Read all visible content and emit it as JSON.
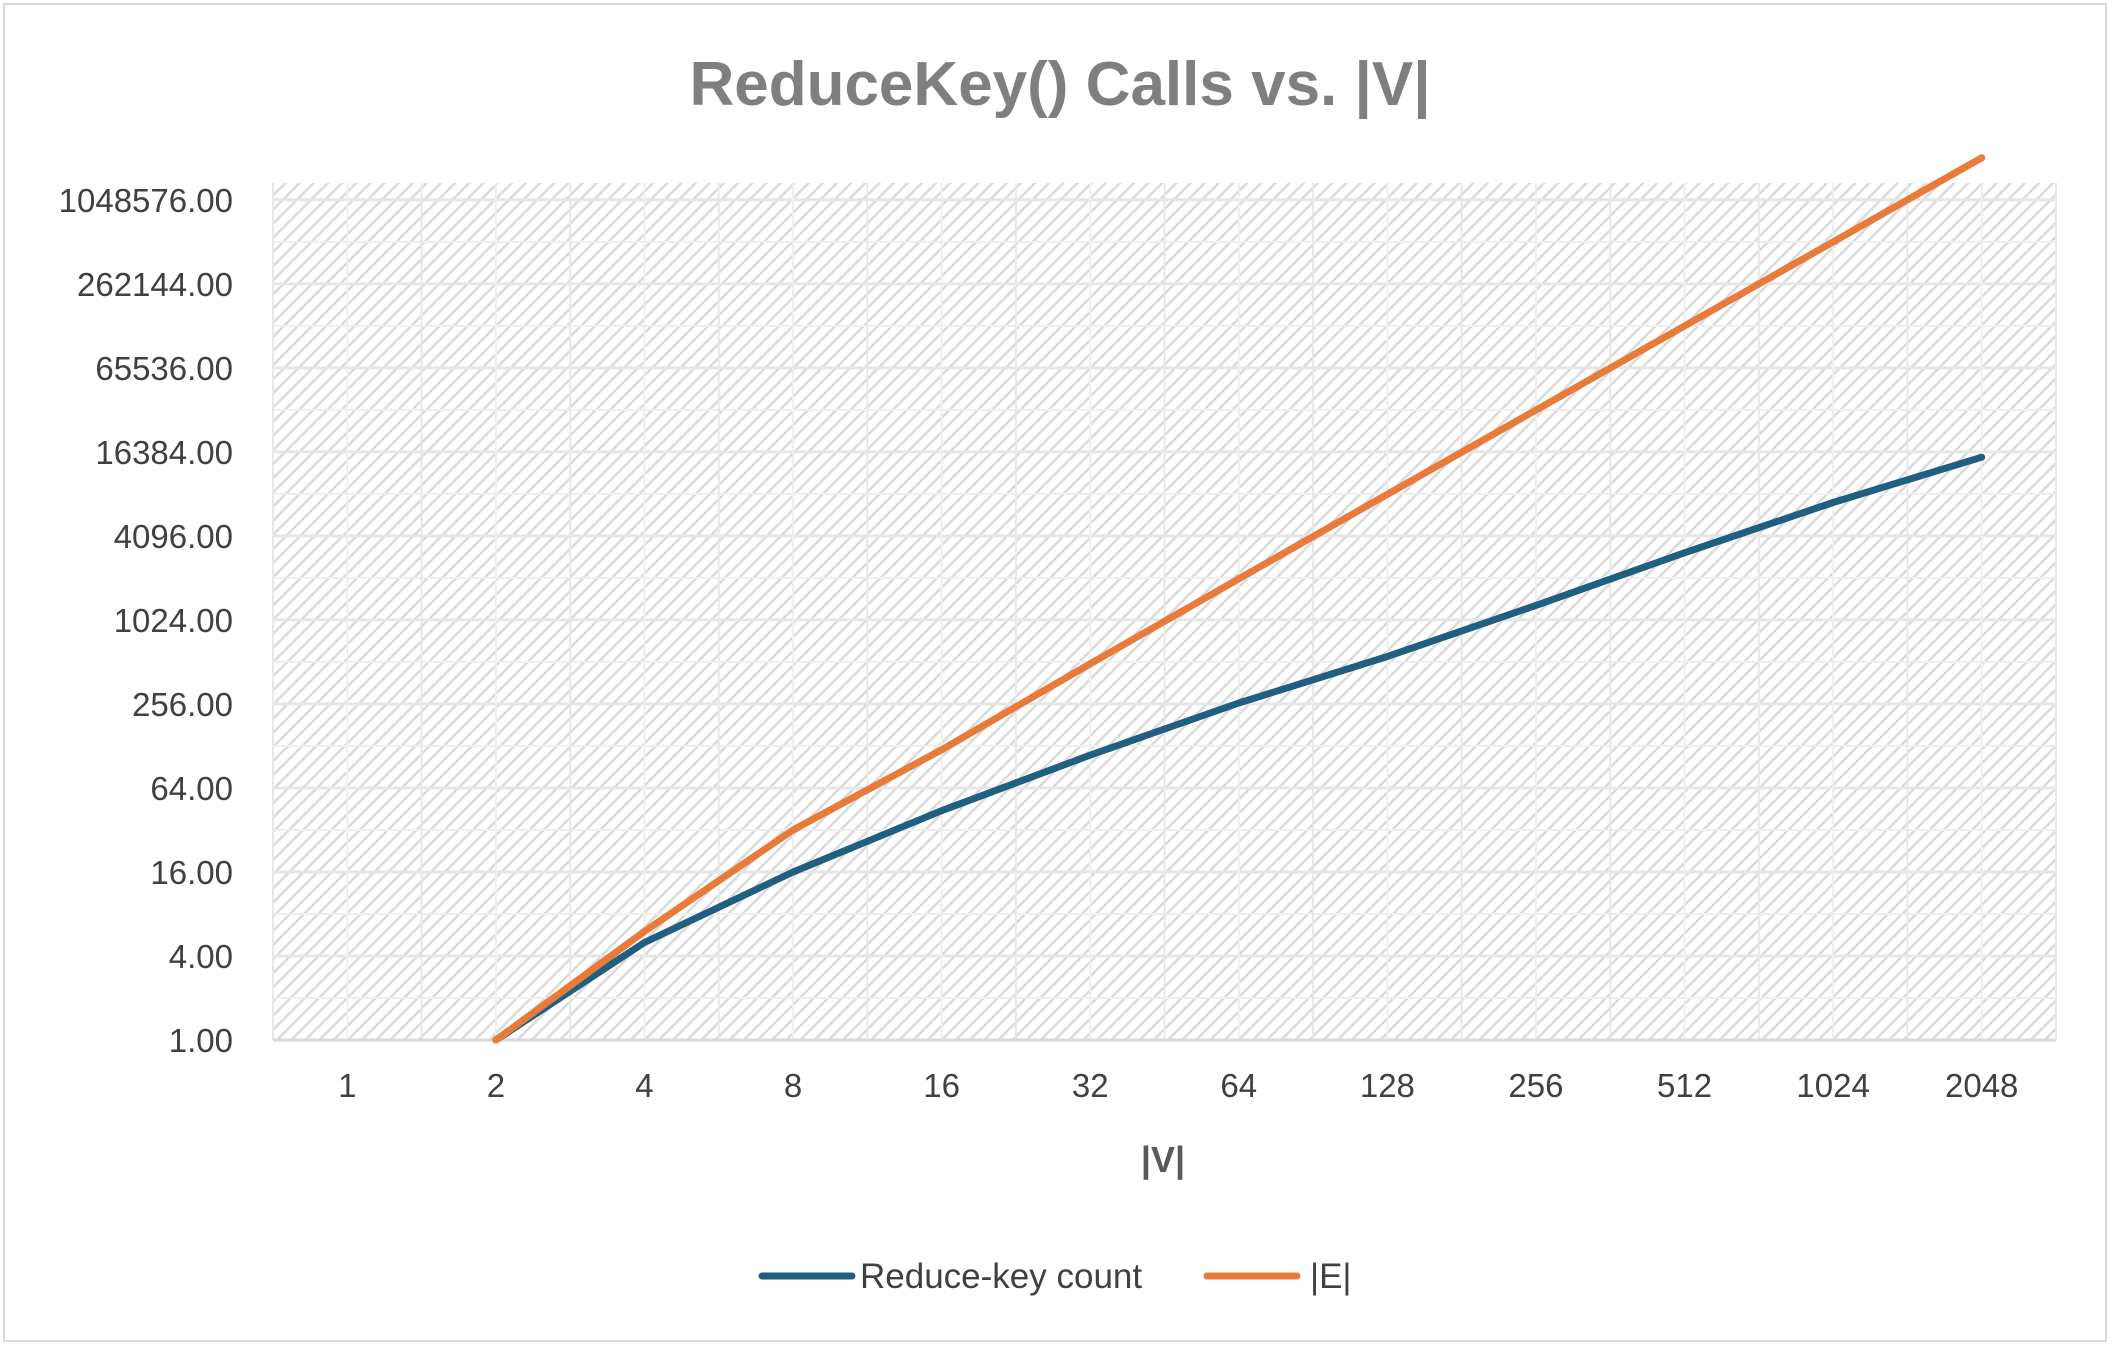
{
  "chart_data": {
    "type": "line",
    "title": "ReduceKey() Calls vs. |V|",
    "xlabel": "|V|",
    "ylabel": "",
    "categories": [
      "1",
      "2",
      "4",
      "8",
      "16",
      "32",
      "64",
      "128",
      "256",
      "512",
      "1024",
      "2048"
    ],
    "y_scale": "log2",
    "ylim": [
      1,
      1048576
    ],
    "y_ticks": [
      "1.00",
      "4.00",
      "16.00",
      "64.00",
      "256.00",
      "1024.00",
      "4096.00",
      "16384.00",
      "65536.00",
      "262144.00",
      "1048576.00"
    ],
    "grid": true,
    "legend_position": "bottom",
    "series": [
      {
        "name": "Reduce-key count",
        "color": "#1f5f7f",
        "values": [
          null,
          1,
          5,
          16,
          44,
          110,
          260,
          560,
          1300,
          3100,
          7100,
          15000
        ]
      },
      {
        "name": "|E|",
        "color": "#e87a3a",
        "values": [
          null,
          1,
          6,
          32,
          120,
          496,
          2016,
          8128,
          32640,
          130816,
          523776,
          2096128
        ]
      }
    ]
  }
}
